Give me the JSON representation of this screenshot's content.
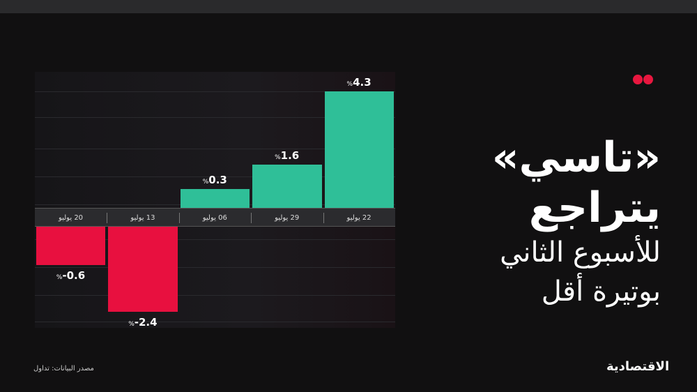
{
  "headline": {
    "line1": "«تاسي»",
    "line2": "يتراجع",
    "line3": "للأسبوع الثاني",
    "line4": "بوتيرة أقل"
  },
  "source": "مصدر البيانات: تداول",
  "logo": "الاقتصادية",
  "colors": {
    "positive": "#2fbf98",
    "negative": "#e8103f",
    "accent_dots": "#e8173f",
    "background": "#111011"
  },
  "chart_data": {
    "type": "bar",
    "categories": [
      "20 يوليو",
      "13 يوليو",
      "06 يوليو",
      "29 يوليو",
      "22 يوليو"
    ],
    "values": [
      -0.6,
      -2.4,
      0.3,
      1.6,
      4.3
    ],
    "labels": [
      "-0.6",
      "-2.4",
      "0.3",
      "1.6",
      "4.3"
    ],
    "unit": "%",
    "ylim": [
      -3,
      4.5
    ],
    "grid": true
  }
}
